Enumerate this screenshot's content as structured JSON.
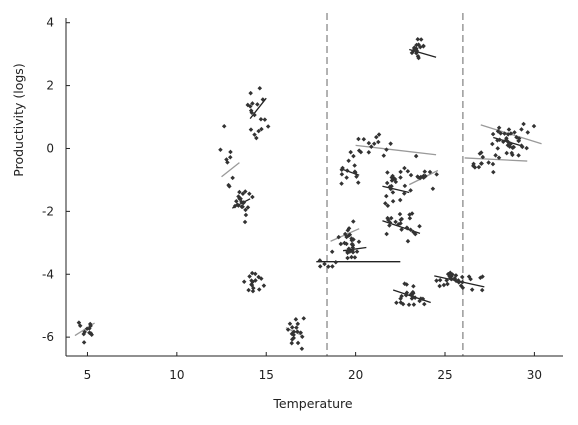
{
  "chart_data": {
    "type": "scatter",
    "xlabel": "Temperature",
    "ylabel": "Productivity (logs)",
    "xlim": [
      3.8,
      31.6
    ],
    "ylim": [
      -6.6,
      4.15
    ],
    "xticks": [
      5,
      10,
      15,
      20,
      25,
      30
    ],
    "yticks": [
      -6,
      -4,
      -2,
      0,
      2,
      4
    ],
    "grid": false,
    "vertical_dashed_lines": [
      18.4,
      26.0
    ],
    "clusters": [
      {
        "cx": 4.9,
        "cy": -5.8,
        "sx": 0.55,
        "sy": 0.45,
        "n": 12,
        "fit": {
          "x": [
            4.3,
            5.4
          ],
          "y": [
            -5.95,
            -5.55
          ],
          "color": "grey"
        }
      },
      {
        "cx": 12.9,
        "cy": -0.55,
        "sx": 0.35,
        "sy": 1.1,
        "n": 9,
        "fit": {
          "x": [
            12.5,
            13.5
          ],
          "y": [
            -0.9,
            -0.45
          ],
          "color": "grey"
        }
      },
      {
        "cx": 13.6,
        "cy": -1.75,
        "sx": 0.55,
        "sy": 0.55,
        "n": 22,
        "fit": {
          "x": [
            13.1,
            14.1
          ],
          "y": [
            -1.9,
            -1.6
          ],
          "color": "dark"
        }
      },
      {
        "cx": 14.5,
        "cy": 1.1,
        "sx": 0.6,
        "sy": 0.75,
        "n": 18,
        "fit": {
          "x": [
            14.1,
            15.0
          ],
          "y": [
            0.95,
            1.6
          ],
          "color": "dark"
        }
      },
      {
        "cx": 14.3,
        "cy": -4.3,
        "sx": 0.55,
        "sy": 0.35,
        "n": 16,
        "fit": null
      },
      {
        "cx": 16.6,
        "cy": -5.8,
        "sx": 0.6,
        "sy": 0.45,
        "n": 18,
        "fit": {
          "x": [
            16.1,
            17.0
          ],
          "y": [
            -5.7,
            -5.95
          ],
          "color": "grey"
        }
      },
      {
        "cx": 18.6,
        "cy": -3.65,
        "sx": 0.55,
        "sy": 0.2,
        "n": 6,
        "fit": {
          "x": [
            17.8,
            22.5
          ],
          "y": [
            -3.6,
            -3.6
          ],
          "color": "dark"
        }
      },
      {
        "cx": 19.6,
        "cy": -3.0,
        "sx": 0.7,
        "sy": 0.55,
        "n": 26,
        "fit": {
          "x": [
            18.6,
            20.2
          ],
          "y": [
            -2.95,
            -2.55
          ],
          "color": "grey"
        }
      },
      {
        "cx": 19.8,
        "cy": -3.3,
        "sx": 0.4,
        "sy": 0.15,
        "n": 4,
        "fit": {
          "x": [
            19.3,
            20.6
          ],
          "y": [
            -3.25,
            -3.15
          ],
          "color": "dark"
        }
      },
      {
        "cx": 19.6,
        "cy": -0.6,
        "sx": 0.7,
        "sy": 0.45,
        "n": 14,
        "fit": {
          "x": [
            19.2,
            20.2
          ],
          "y": [
            -0.65,
            -0.85
          ],
          "color": "dark"
        }
      },
      {
        "cx": 21.5,
        "cy": 0.05,
        "sx": 1.5,
        "sy": 0.4,
        "n": 14,
        "fit": {
          "x": [
            20.0,
            24.5
          ],
          "y": [
            0.1,
            -0.2
          ],
          "color": "grey"
        }
      },
      {
        "cx": 22.3,
        "cy": -1.3,
        "sx": 0.8,
        "sy": 0.55,
        "n": 22,
        "fit": {
          "x": [
            21.5,
            23.0
          ],
          "y": [
            -1.2,
            -1.4
          ],
          "color": "dark"
        }
      },
      {
        "cx": 23.8,
        "cy": -0.8,
        "sx": 0.7,
        "sy": 0.6,
        "n": 14,
        "fit": {
          "x": [
            23.0,
            24.6
          ],
          "y": [
            -1.15,
            -0.7
          ],
          "color": "grey"
        }
      },
      {
        "cx": 22.6,
        "cy": -2.4,
        "sx": 1.1,
        "sy": 0.45,
        "n": 24,
        "fit": {
          "x": [
            21.5,
            23.6
          ],
          "y": [
            -2.3,
            -2.7
          ],
          "color": "dark"
        }
      },
      {
        "cx": 23.0,
        "cy": -4.7,
        "sx": 1.0,
        "sy": 0.35,
        "n": 22,
        "fit": {
          "x": [
            22.1,
            24.2
          ],
          "y": [
            -4.5,
            -4.9
          ],
          "color": "dark"
        }
      },
      {
        "cx": 25.7,
        "cy": -4.2,
        "sx": 1.3,
        "sy": 0.3,
        "n": 28,
        "fit": {
          "x": [
            24.4,
            27.2
          ],
          "y": [
            -4.05,
            -4.4
          ],
          "color": "dark"
        }
      },
      {
        "cx": 23.5,
        "cy": 3.15,
        "sx": 0.55,
        "sy": 0.3,
        "n": 16,
        "fit": {
          "x": [
            23.0,
            24.5
          ],
          "y": [
            3.15,
            2.9
          ],
          "color": "dark"
        }
      },
      {
        "cx": 28.5,
        "cy": 0.2,
        "sx": 1.2,
        "sy": 0.65,
        "n": 30,
        "fit": {
          "x": [
            27.0,
            30.4
          ],
          "y": [
            0.75,
            0.15
          ],
          "color": "grey"
        }
      },
      {
        "cx": 28.3,
        "cy": 0.15,
        "sx": 0.9,
        "sy": 0.4,
        "n": 10,
        "fit": {
          "x": [
            27.7,
            29.2
          ],
          "y": [
            0.35,
            0.1
          ],
          "color": "dark"
        }
      },
      {
        "cx": 27.0,
        "cy": -0.45,
        "sx": 0.9,
        "sy": 0.6,
        "n": 12,
        "fit": {
          "x": [
            26.1,
            29.6
          ],
          "y": [
            -0.3,
            -0.4
          ],
          "color": "grey"
        }
      }
    ]
  }
}
